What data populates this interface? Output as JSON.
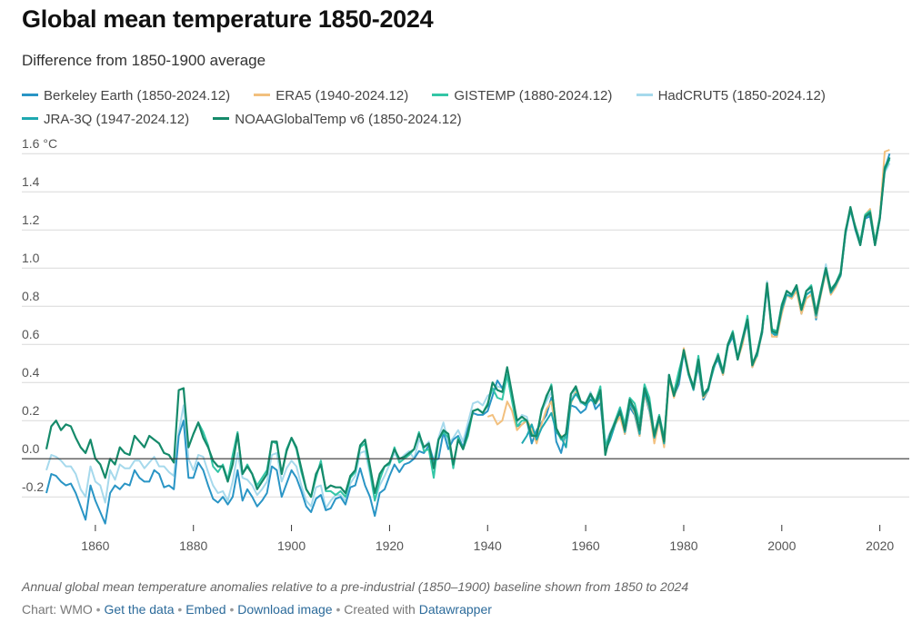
{
  "title": "Global mean temperature 1850-2024",
  "subtitle": "Difference from 1850-1900 average",
  "caption": "Annual global mean temperature anomalies relative to a pre-industrial (1850–1900) baseline shown from 1850 to 2024",
  "footer": {
    "prefix": "Chart: WMO",
    "get_data": "Get the data",
    "embed": "Embed",
    "download": "Download image",
    "created_with_prefix": "Created with",
    "created_with_link": "Datawrapper"
  },
  "colors": {
    "berkeley": "#2a95c5",
    "era5": "#f2c07e",
    "gistemp": "#34c6a6",
    "hadcrut": "#a6d9ec",
    "jra": "#1fa8b0",
    "noaa": "#158a6a"
  },
  "chart_data": {
    "type": "line",
    "xlabel": "",
    "ylabel": "",
    "ylim": [
      -0.38,
      1.62
    ],
    "xlim": [
      1845,
      2026
    ],
    "y_ticks": [
      {
        "value": 1.6,
        "label": "1.6 °C"
      },
      {
        "value": 1.4,
        "label": "1.4"
      },
      {
        "value": 1.2,
        "label": "1.2"
      },
      {
        "value": 1.0,
        "label": "1.0"
      },
      {
        "value": 0.8,
        "label": "0.8"
      },
      {
        "value": 0.6,
        "label": "0.6"
      },
      {
        "value": 0.4,
        "label": "0.4"
      },
      {
        "value": 0.2,
        "label": "0.2"
      },
      {
        "value": 0.0,
        "label": "0.0"
      },
      {
        "value": -0.2,
        "label": "-0.2"
      }
    ],
    "x_ticks": [
      {
        "value": 1860,
        "label": "1860"
      },
      {
        "value": 1880,
        "label": "1880"
      },
      {
        "value": 1900,
        "label": "1900"
      },
      {
        "value": 1920,
        "label": "1920"
      },
      {
        "value": 1940,
        "label": "1940"
      },
      {
        "value": 1960,
        "label": "1960"
      },
      {
        "value": 1980,
        "label": "1980"
      },
      {
        "value": 2000,
        "label": "2000"
      },
      {
        "value": 2020,
        "label": "2020"
      }
    ],
    "legend_position": "top",
    "grid": "horizontal",
    "series": [
      {
        "key": "berkeley",
        "name": "Berkeley Earth (1850-2024.12)",
        "start": 1850,
        "values": [
          -0.18,
          -0.08,
          -0.09,
          -0.12,
          -0.14,
          -0.13,
          -0.18,
          -0.25,
          -0.32,
          -0.14,
          -0.22,
          -0.28,
          -0.34,
          -0.18,
          -0.14,
          -0.16,
          -0.13,
          -0.14,
          -0.06,
          -0.1,
          -0.12,
          -0.12,
          -0.06,
          -0.08,
          -0.15,
          -0.14,
          -0.16,
          0.12,
          0.2,
          -0.1,
          -0.1,
          -0.02,
          -0.06,
          -0.14,
          -0.21,
          -0.23,
          -0.2,
          -0.24,
          -0.2,
          -0.06,
          -0.22,
          -0.16,
          -0.2,
          -0.25,
          -0.22,
          -0.18,
          -0.04,
          -0.06,
          -0.2,
          -0.13,
          -0.06,
          -0.1,
          -0.17,
          -0.25,
          -0.28,
          -0.21,
          -0.19,
          -0.27,
          -0.26,
          -0.21,
          -0.2,
          -0.24,
          -0.15,
          -0.14,
          -0.05,
          -0.14,
          -0.2,
          -0.3,
          -0.18,
          -0.16,
          -0.09,
          -0.03,
          -0.07,
          -0.03,
          -0.02,
          0.0,
          0.04,
          0.03,
          0.07,
          -0.01,
          0.0,
          0.14,
          0.05,
          0.1,
          0.12,
          0.06,
          0.16,
          0.24,
          0.23,
          0.23,
          0.25,
          0.33,
          0.41,
          0.37,
          0.44,
          0.31,
          0.17,
          0.18,
          0.2,
          0.08,
          0.15,
          0.19,
          0.23,
          0.32,
          0.09,
          0.03,
          0.14,
          0.28,
          0.27,
          0.24,
          0.26,
          0.34,
          0.26,
          0.29,
          0.05,
          0.13,
          0.19,
          0.24,
          0.13,
          0.27,
          0.23,
          0.12,
          0.34,
          0.25,
          0.1,
          0.22,
          0.08,
          0.44,
          0.33,
          0.39,
          0.56,
          0.45,
          0.38,
          0.48,
          0.31,
          0.36,
          0.48,
          0.52,
          0.44,
          0.59,
          0.64,
          0.52,
          0.62,
          0.71,
          0.48,
          0.55,
          0.66,
          0.9,
          0.66,
          0.64,
          0.79,
          0.86,
          0.84,
          0.89,
          0.76,
          0.86,
          0.88,
          0.73,
          0.87,
          0.99,
          0.87,
          0.91,
          0.96,
          1.18,
          1.31,
          1.2,
          1.12,
          1.26,
          1.27,
          1.12,
          1.26,
          1.52,
          1.6
        ]
      },
      {
        "key": "era5",
        "name": "ERA5 (1940-2024.12)",
        "start": 1940,
        "values": [
          0.22,
          0.23,
          0.18,
          0.2,
          0.3,
          0.25,
          0.15,
          0.18,
          0.2,
          0.16,
          0.08,
          0.18,
          0.26,
          0.3,
          0.14,
          0.12,
          0.06,
          0.29,
          0.35,
          0.3,
          0.28,
          0.31,
          0.29,
          0.32,
          0.05,
          0.11,
          0.18,
          0.22,
          0.13,
          0.29,
          0.24,
          0.12,
          0.34,
          0.26,
          0.08,
          0.2,
          0.06,
          0.42,
          0.32,
          0.42,
          0.58,
          0.46,
          0.36,
          0.5,
          0.32,
          0.36,
          0.48,
          0.54,
          0.44,
          0.6,
          0.66,
          0.52,
          0.6,
          0.73,
          0.48,
          0.54,
          0.66,
          0.92,
          0.64,
          0.64,
          0.76,
          0.86,
          0.84,
          0.88,
          0.76,
          0.84,
          0.86,
          0.74,
          0.86,
          0.98,
          0.86,
          0.9,
          0.96,
          1.2,
          1.31,
          1.22,
          1.14,
          1.28,
          1.31,
          1.14,
          1.27,
          1.61,
          1.62
        ]
      },
      {
        "key": "gistemp",
        "name": "GISTEMP (1880-2024.12)",
        "start": 1880,
        "values": [
          0.13,
          0.19,
          0.14,
          0.07,
          -0.04,
          -0.07,
          -0.03,
          -0.11,
          0.02,
          0.14,
          -0.08,
          -0.03,
          -0.08,
          -0.14,
          -0.1,
          -0.06,
          0.09,
          0.08,
          -0.08,
          0.05,
          0.11,
          0.05,
          -0.07,
          -0.16,
          -0.2,
          -0.1,
          -0.01,
          -0.17,
          -0.17,
          -0.19,
          -0.17,
          -0.2,
          -0.1,
          -0.07,
          0.06,
          0.08,
          -0.06,
          -0.22,
          -0.11,
          -0.04,
          -0.03,
          0.06,
          -0.02,
          0.0,
          0.02,
          0.05,
          0.14,
          0.04,
          0.05,
          -0.1,
          0.1,
          0.14,
          0.11,
          -0.05,
          0.11,
          0.05,
          0.12,
          0.25,
          0.26,
          0.24,
          0.29,
          0.37,
          0.32,
          0.31,
          0.44,
          0.3,
          0.17,
          0.2,
          0.2,
          0.13,
          0.11,
          0.26,
          0.32,
          0.39,
          0.15,
          0.1,
          0.11,
          0.34,
          0.37,
          0.3,
          0.28,
          0.34,
          0.3,
          0.38,
          0.07,
          0.12,
          0.2,
          0.27,
          0.18,
          0.32,
          0.29,
          0.19,
          0.39,
          0.32,
          0.13,
          0.23,
          0.11,
          0.43,
          0.35,
          0.46,
          0.56,
          0.44,
          0.38,
          0.54,
          0.34,
          0.37,
          0.46,
          0.55,
          0.46,
          0.6,
          0.67,
          0.53,
          0.63,
          0.75,
          0.51,
          0.54,
          0.68,
          0.91,
          0.68,
          0.67,
          0.81,
          0.88,
          0.86,
          0.91,
          0.79,
          0.88,
          0.91,
          0.77,
          0.89,
          1.0,
          0.89,
          0.92,
          0.98,
          1.2,
          1.3,
          1.22,
          1.14,
          1.28,
          1.3,
          1.14,
          1.27,
          1.51,
          1.57
        ]
      },
      {
        "key": "hadcrut",
        "name": "HadCRUT5 (1850-2024.12)",
        "start": 1850,
        "values": [
          -0.06,
          0.02,
          0.01,
          -0.01,
          -0.04,
          -0.04,
          -0.08,
          -0.16,
          -0.2,
          -0.04,
          -0.12,
          -0.14,
          -0.23,
          -0.06,
          -0.11,
          -0.03,
          -0.05,
          -0.05,
          -0.01,
          -0.01,
          -0.05,
          -0.02,
          0.01,
          -0.04,
          -0.04,
          -0.07,
          -0.09,
          0.14,
          0.28,
          0.0,
          -0.06,
          0.02,
          0.01,
          -0.07,
          -0.14,
          -0.18,
          -0.17,
          -0.22,
          -0.12,
          0.03,
          -0.1,
          -0.11,
          -0.14,
          -0.19,
          -0.16,
          -0.12,
          0.02,
          0.03,
          -0.12,
          -0.05,
          -0.01,
          -0.04,
          -0.14,
          -0.22,
          -0.25,
          -0.15,
          -0.14,
          -0.26,
          -0.22,
          -0.19,
          -0.19,
          -0.22,
          -0.13,
          -0.09,
          0.03,
          0.04,
          -0.08,
          -0.22,
          -0.14,
          -0.09,
          -0.03,
          0.03,
          -0.01,
          0.02,
          0.04,
          0.0,
          0.1,
          0.06,
          0.09,
          -0.02,
          0.11,
          0.19,
          0.08,
          0.11,
          0.15,
          0.09,
          0.19,
          0.29,
          0.3,
          0.28,
          0.33,
          0.35,
          0.38,
          0.37,
          0.43,
          0.31,
          0.19,
          0.23,
          0.22,
          0.12,
          0.12,
          0.25,
          0.3,
          0.35,
          0.15,
          0.11,
          0.12,
          0.31,
          0.36,
          0.29,
          0.29,
          0.35,
          0.28,
          0.33,
          0.08,
          0.14,
          0.2,
          0.25,
          0.17,
          0.31,
          0.26,
          0.14,
          0.36,
          0.28,
          0.12,
          0.23,
          0.1,
          0.44,
          0.33,
          0.42,
          0.57,
          0.45,
          0.37,
          0.52,
          0.33,
          0.37,
          0.48,
          0.55,
          0.45,
          0.6,
          0.66,
          0.53,
          0.64,
          0.74,
          0.5,
          0.56,
          0.68,
          0.93,
          0.67,
          0.66,
          0.81,
          0.88,
          0.85,
          0.9,
          0.79,
          0.88,
          0.9,
          0.77,
          0.88,
          1.02,
          0.88,
          0.92,
          0.97,
          1.18,
          1.3,
          1.21,
          1.12,
          1.26,
          1.29,
          1.12,
          1.25,
          1.5,
          1.55
        ]
      },
      {
        "key": "jra",
        "name": "JRA-3Q (1947-2024.12)",
        "start": 1947,
        "values": [
          0.08,
          0.12,
          0.18,
          0.1,
          0.16,
          0.2,
          0.24,
          0.14,
          0.11,
          0.06,
          0.3,
          0.34,
          0.3,
          0.28,
          0.31,
          0.29,
          0.33,
          0.04,
          0.1,
          0.18,
          0.26,
          0.14,
          0.29,
          0.25,
          0.13,
          0.35,
          0.27,
          0.11,
          0.21,
          0.08,
          0.43,
          0.33,
          0.42,
          0.56,
          0.44,
          0.36,
          0.5,
          0.33,
          0.36,
          0.47,
          0.53,
          0.45,
          0.59,
          0.65,
          0.52,
          0.62,
          0.72,
          0.49,
          0.55,
          0.66,
          0.91,
          0.66,
          0.65,
          0.78,
          0.86,
          0.85,
          0.9,
          0.78,
          0.86,
          0.88,
          0.75,
          0.87,
          0.99,
          0.87,
          0.91,
          0.96,
          1.19,
          1.31,
          1.21,
          1.12,
          1.27,
          1.28,
          1.12,
          1.26,
          1.53,
          1.58
        ]
      },
      {
        "key": "noaa",
        "name": "NOAAGlobalTemp v6 (1850-2024.12)",
        "start": 1850,
        "values": [
          0.05,
          0.17,
          0.2,
          0.15,
          0.18,
          0.17,
          0.11,
          0.06,
          0.03,
          0.1,
          0.0,
          -0.03,
          -0.1,
          0.0,
          -0.03,
          0.06,
          0.03,
          0.02,
          0.12,
          0.09,
          0.06,
          0.12,
          0.1,
          0.08,
          0.03,
          0.02,
          -0.02,
          0.36,
          0.37,
          0.06,
          0.13,
          0.19,
          0.11,
          0.06,
          -0.01,
          -0.04,
          -0.04,
          -0.12,
          -0.03,
          0.13,
          -0.08,
          -0.04,
          -0.08,
          -0.16,
          -0.12,
          -0.08,
          0.09,
          0.09,
          -0.08,
          0.04,
          0.11,
          0.06,
          -0.05,
          -0.16,
          -0.2,
          -0.08,
          -0.03,
          -0.16,
          -0.14,
          -0.15,
          -0.15,
          -0.18,
          -0.09,
          -0.06,
          0.07,
          0.1,
          -0.04,
          -0.18,
          -0.08,
          -0.04,
          -0.02,
          0.05,
          0.0,
          0.01,
          0.03,
          0.05,
          0.13,
          0.06,
          0.08,
          -0.05,
          0.1,
          0.15,
          0.13,
          -0.03,
          0.1,
          0.05,
          0.14,
          0.25,
          0.26,
          0.24,
          0.28,
          0.4,
          0.36,
          0.35,
          0.48,
          0.34,
          0.2,
          0.22,
          0.2,
          0.12,
          0.12,
          0.25,
          0.33,
          0.38,
          0.16,
          0.11,
          0.13,
          0.34,
          0.38,
          0.3,
          0.29,
          0.34,
          0.29,
          0.36,
          0.02,
          0.13,
          0.19,
          0.25,
          0.15,
          0.31,
          0.26,
          0.15,
          0.37,
          0.29,
          0.12,
          0.22,
          0.09,
          0.44,
          0.33,
          0.42,
          0.57,
          0.45,
          0.37,
          0.52,
          0.33,
          0.37,
          0.48,
          0.54,
          0.45,
          0.6,
          0.66,
          0.52,
          0.63,
          0.73,
          0.49,
          0.56,
          0.67,
          0.92,
          0.67,
          0.66,
          0.8,
          0.88,
          0.86,
          0.91,
          0.78,
          0.88,
          0.9,
          0.76,
          0.88,
          1.0,
          0.88,
          0.92,
          0.97,
          1.19,
          1.32,
          1.21,
          1.12,
          1.27,
          1.29,
          1.12,
          1.26,
          1.52,
          1.58
        ]
      }
    ]
  }
}
